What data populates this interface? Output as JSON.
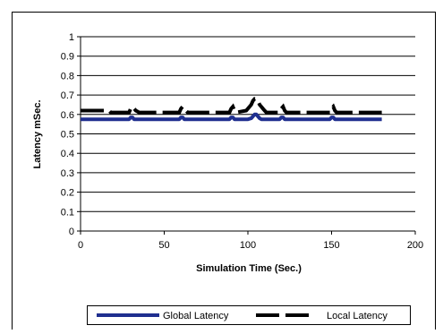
{
  "chart_data": {
    "type": "line",
    "title": "",
    "xlabel": "Simulation Time (Sec.)",
    "ylabel": "Latency mSec.",
    "xlim": [
      0,
      200
    ],
    "ylim": [
      0,
      1
    ],
    "x_ticks": [
      "0",
      "50",
      "100",
      "150",
      "200"
    ],
    "y_ticks": [
      "0",
      "0.1",
      "0.2",
      "0.3",
      "0.4",
      "0.5",
      "0.6",
      "0.7",
      "0.8",
      "0.9",
      "1"
    ],
    "grid": "horizontal",
    "legend_position": "bottom",
    "colors": {
      "global": "#1f2f8f",
      "local": "#000000",
      "frame": "#000000"
    },
    "series": [
      {
        "name": "Global Latency",
        "style": "solid-thick",
        "x": [
          0,
          29,
          30,
          31,
          32,
          59,
          60,
          61,
          62,
          89,
          90,
          91,
          92,
          100,
          102,
          103,
          104,
          105,
          106,
          107,
          108,
          110,
          119,
          120,
          121,
          122,
          149,
          150,
          151,
          152,
          180
        ],
        "y": [
          0.575,
          0.575,
          0.585,
          0.585,
          0.575,
          0.575,
          0.585,
          0.585,
          0.575,
          0.575,
          0.585,
          0.585,
          0.575,
          0.575,
          0.58,
          0.59,
          0.6,
          0.6,
          0.59,
          0.58,
          0.575,
          0.575,
          0.575,
          0.585,
          0.585,
          0.575,
          0.575,
          0.585,
          0.585,
          0.575,
          0.575
        ]
      },
      {
        "name": "Local Latency",
        "style": "dashed-thick",
        "x": [
          0,
          17,
          18,
          19,
          29,
          30,
          31,
          32,
          33,
          34,
          35,
          45,
          55,
          59,
          60,
          61,
          62,
          63,
          64,
          75,
          80,
          89,
          90,
          91,
          92,
          93,
          99,
          100,
          101,
          102,
          103,
          104,
          105,
          106,
          107,
          108,
          109,
          110,
          111,
          119,
          120,
          121,
          122,
          123,
          133,
          140,
          149,
          150,
          151,
          152,
          153,
          163,
          170,
          180
        ],
        "y": [
          0.62,
          0.62,
          0.61,
          0.61,
          0.61,
          0.63,
          0.64,
          0.63,
          0.62,
          0.615,
          0.61,
          0.61,
          0.61,
          0.61,
          0.63,
          0.64,
          0.63,
          0.62,
          0.61,
          0.61,
          0.61,
          0.61,
          0.63,
          0.64,
          0.62,
          0.61,
          0.62,
          0.63,
          0.64,
          0.65,
          0.67,
          0.68,
          0.68,
          0.67,
          0.65,
          0.64,
          0.63,
          0.62,
          0.61,
          0.61,
          0.63,
          0.64,
          0.62,
          0.61,
          0.61,
          0.61,
          0.61,
          0.63,
          0.64,
          0.62,
          0.61,
          0.61,
          0.61,
          0.61
        ]
      }
    ]
  }
}
